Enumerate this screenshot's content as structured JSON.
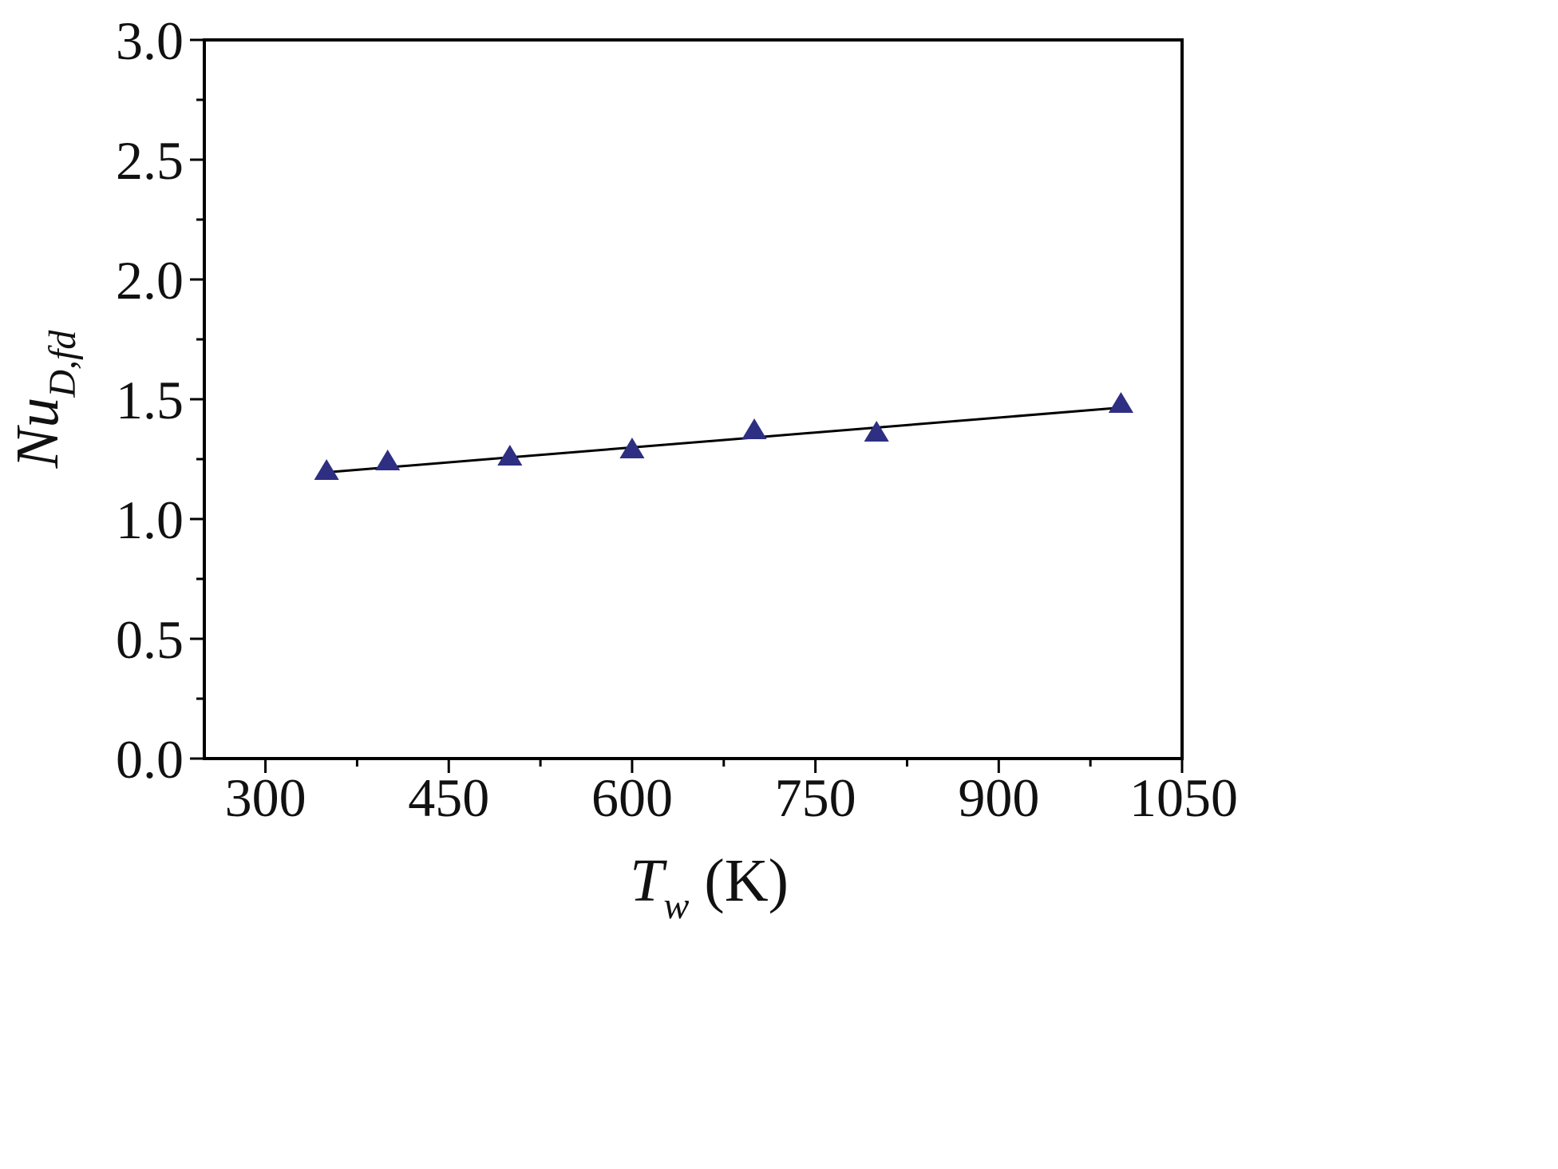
{
  "chart_data": {
    "type": "scatter",
    "title": "",
    "xlabel": {
      "symbol": "T",
      "subscript": "w",
      "unit": " (K)"
    },
    "ylabel": {
      "symbol": "Nu",
      "subscript": "D,fd"
    },
    "xlim": [
      250,
      1050
    ],
    "ylim": [
      0.0,
      3.0
    ],
    "x_ticks": [
      300,
      450,
      600,
      750,
      900,
      1050
    ],
    "x_tick_labels": [
      "300",
      "450",
      "600",
      "750",
      "900",
      "1050"
    ],
    "x_minor_ticks": [
      375,
      525,
      675,
      825,
      975
    ],
    "y_ticks": [
      0.0,
      0.5,
      1.0,
      1.5,
      2.0,
      2.5,
      3.0
    ],
    "y_tick_labels": [
      "0.0",
      "0.5",
      "1.0",
      "1.5",
      "2.0",
      "2.5",
      "3.0"
    ],
    "y_minor_ticks": [
      0.25,
      0.75,
      1.25,
      1.75,
      2.25,
      2.75
    ],
    "grid": false,
    "series": [
      {
        "marker": "triangle",
        "color": "#2e2f82",
        "points": [
          {
            "x": 350,
            "y": 1.2
          },
          {
            "x": 400,
            "y": 1.24
          },
          {
            "x": 500,
            "y": 1.26
          },
          {
            "x": 600,
            "y": 1.29
          },
          {
            "x": 700,
            "y": 1.37
          },
          {
            "x": 800,
            "y": 1.36
          },
          {
            "x": 1000,
            "y": 1.48
          }
        ]
      }
    ],
    "fit_line": {
      "color": "#000000",
      "start": {
        "x": 350,
        "y": 1.195
      },
      "end": {
        "x": 1000,
        "y": 1.465
      }
    }
  }
}
